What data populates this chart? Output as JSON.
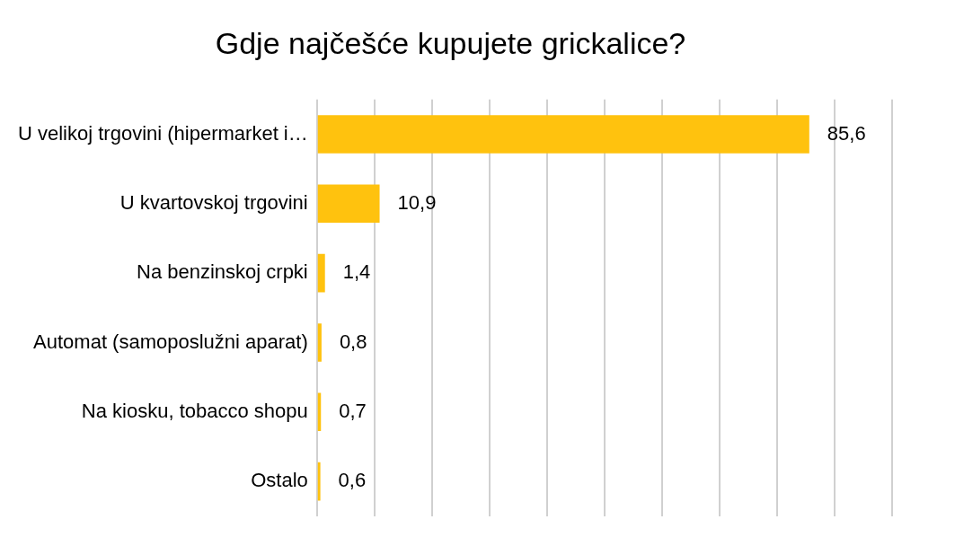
{
  "chart_data": {
    "type": "bar",
    "orientation": "horizontal",
    "title": "Gdje najčešće kupujete grickalice?",
    "categories": [
      "U velikoj trgovini (hipermarket i…",
      "U kvartovskoj trgovini",
      "Na benzinskoj crpki",
      "Automat (samoposlužni aparat)",
      "Na kiosku, tobacco shopu",
      "Ostalo"
    ],
    "values": [
      85.6,
      10.9,
      1.4,
      0.8,
      0.7,
      0.6
    ],
    "value_labels": [
      "85,6",
      "10,9",
      "1,4",
      "0,8",
      "0,7",
      "0,6"
    ],
    "color": "#ffc20e",
    "xlim": [
      0,
      100
    ],
    "xticks": [
      {
        "value": 0,
        "label": null
      },
      {
        "value": 10,
        "label": null
      },
      {
        "value": 20,
        "label": null
      },
      {
        "value": 30,
        "label": null
      },
      {
        "value": 40,
        "label": null
      },
      {
        "value": 50,
        "label": null
      },
      {
        "value": 60,
        "label": null
      },
      {
        "value": 70,
        "label": null
      },
      {
        "value": 80,
        "label": null
      },
      {
        "value": 90,
        "label": null
      },
      {
        "value": 100,
        "label": null
      }
    ],
    "grid": "x",
    "tick_labels": "y",
    "legend": false
  }
}
